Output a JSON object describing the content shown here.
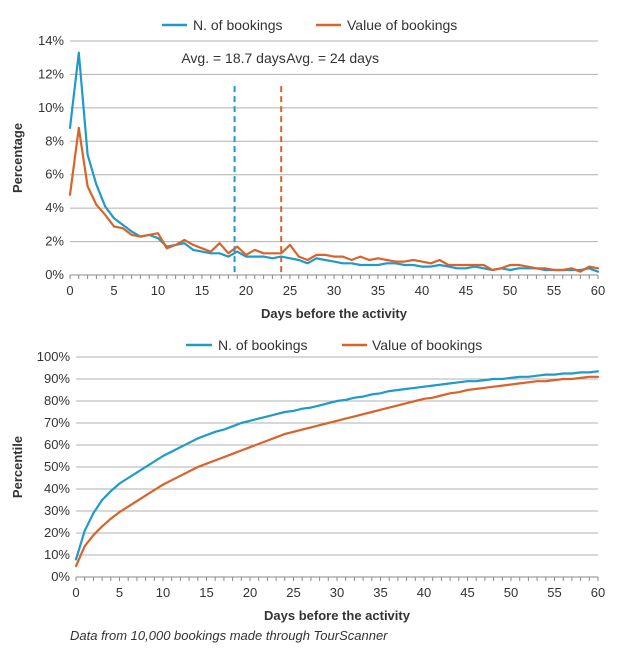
{
  "colors": {
    "blue": "#1f9ac9",
    "orange": "#d9632b"
  },
  "footnote": "Data from 10,000 bookings made through TourScanner",
  "chart_data": [
    {
      "type": "line",
      "xlabel": "Days before the activity",
      "ylabel": "Percentage",
      "xlim": [
        0,
        60
      ],
      "ylim": [
        0,
        14
      ],
      "x_ticks": [
        0,
        5,
        10,
        15,
        20,
        25,
        30,
        35,
        40,
        45,
        50,
        55,
        60
      ],
      "y_ticks": [
        0,
        2,
        4,
        6,
        8,
        10,
        12,
        14
      ],
      "y_tick_labels": [
        "0%",
        "2%",
        "4%",
        "6%",
        "8%",
        "10%",
        "12%",
        "14%"
      ],
      "legend": [
        "N. of bookings",
        "Value of bookings"
      ],
      "annotations": [
        {
          "text": "Avg. = 18.7 days",
          "x": 18.7,
          "color": "blue"
        },
        {
          "text": "Avg. = 24 days",
          "x": 24,
          "color": "orange"
        }
      ],
      "x": [
        0,
        1,
        2,
        3,
        4,
        5,
        6,
        7,
        8,
        9,
        10,
        11,
        12,
        13,
        14,
        15,
        16,
        17,
        18,
        19,
        20,
        21,
        22,
        23,
        24,
        25,
        26,
        27,
        28,
        29,
        30,
        31,
        32,
        33,
        34,
        35,
        36,
        37,
        38,
        39,
        40,
        41,
        42,
        43,
        44,
        45,
        46,
        47,
        48,
        49,
        50,
        51,
        52,
        53,
        54,
        55,
        56,
        57,
        58,
        59,
        60
      ],
      "series": [
        {
          "name": "N. of bookings",
          "color": "blue",
          "values": [
            8.8,
            13.3,
            7.2,
            5.4,
            4.1,
            3.4,
            3.0,
            2.6,
            2.3,
            2.4,
            2.2,
            1.7,
            1.8,
            1.9,
            1.5,
            1.4,
            1.3,
            1.3,
            1.1,
            1.4,
            1.1,
            1.1,
            1.1,
            1.0,
            1.1,
            1.0,
            0.9,
            0.7,
            1.0,
            0.9,
            0.8,
            0.7,
            0.7,
            0.6,
            0.6,
            0.6,
            0.7,
            0.7,
            0.6,
            0.6,
            0.5,
            0.5,
            0.6,
            0.5,
            0.4,
            0.4,
            0.5,
            0.4,
            0.3,
            0.4,
            0.3,
            0.4,
            0.4,
            0.4,
            0.3,
            0.3,
            0.3,
            0.3,
            0.3,
            0.4,
            0.2
          ]
        },
        {
          "name": "Value of bookings",
          "color": "orange",
          "values": [
            4.8,
            8.8,
            5.3,
            4.2,
            3.6,
            2.9,
            2.8,
            2.4,
            2.3,
            2.4,
            2.5,
            1.6,
            1.8,
            2.1,
            1.8,
            1.6,
            1.4,
            1.9,
            1.3,
            1.7,
            1.2,
            1.5,
            1.3,
            1.3,
            1.3,
            1.8,
            1.1,
            0.9,
            1.2,
            1.2,
            1.1,
            1.1,
            0.9,
            1.1,
            0.9,
            1.0,
            0.9,
            0.8,
            0.8,
            0.9,
            0.8,
            0.7,
            0.9,
            0.6,
            0.6,
            0.6,
            0.6,
            0.6,
            0.3,
            0.4,
            0.6,
            0.6,
            0.5,
            0.4,
            0.4,
            0.3,
            0.3,
            0.4,
            0.2,
            0.5,
            0.4
          ]
        }
      ]
    },
    {
      "type": "line",
      "xlabel": "Days before the activity",
      "ylabel": "Percentile",
      "xlim": [
        0,
        60
      ],
      "ylim": [
        0,
        100
      ],
      "x_ticks": [
        0,
        5,
        10,
        15,
        20,
        25,
        30,
        35,
        40,
        45,
        50,
        55,
        60
      ],
      "y_ticks": [
        0,
        10,
        20,
        30,
        40,
        50,
        60,
        70,
        80,
        90,
        100
      ],
      "y_tick_labels": [
        "0%",
        "10%",
        "20%",
        "30%",
        "40%",
        "50%",
        "60%",
        "70%",
        "80%",
        "90%",
        "100%"
      ],
      "legend": [
        "N. of bookings",
        "Value of bookings"
      ],
      "x": [
        0,
        1,
        2,
        3,
        4,
        5,
        6,
        7,
        8,
        9,
        10,
        11,
        12,
        13,
        14,
        15,
        16,
        17,
        18,
        19,
        20,
        21,
        22,
        23,
        24,
        25,
        26,
        27,
        28,
        29,
        30,
        31,
        32,
        33,
        34,
        35,
        36,
        37,
        38,
        39,
        40,
        41,
        42,
        43,
        44,
        45,
        46,
        47,
        48,
        49,
        50,
        51,
        52,
        53,
        54,
        55,
        56,
        57,
        58,
        59,
        60
      ],
      "series": [
        {
          "name": "N. of bookings",
          "color": "blue",
          "values": [
            8,
            21,
            29,
            35,
            39,
            42.5,
            45,
            47.5,
            50,
            52.5,
            55,
            57,
            59,
            61,
            63,
            64.5,
            66,
            67,
            68.5,
            70,
            71,
            72,
            73,
            74,
            75,
            75.5,
            76.5,
            77,
            78,
            79,
            80,
            80.5,
            81.5,
            82,
            83,
            83.5,
            84.5,
            85,
            85.5,
            86,
            86.5,
            87,
            87.5,
            88,
            88.5,
            89,
            89,
            89.5,
            90,
            90,
            90.5,
            91,
            91,
            91.5,
            92,
            92,
            92.5,
            92.5,
            93,
            93,
            93.5
          ]
        },
        {
          "name": "Value of bookings",
          "color": "orange",
          "values": [
            5,
            14,
            19,
            23,
            26.5,
            29.5,
            32,
            34.5,
            37,
            39.5,
            42,
            44,
            46,
            48,
            50,
            51.5,
            53,
            54.5,
            56,
            57.5,
            59,
            60.5,
            62,
            63.5,
            65,
            66,
            67,
            68,
            69,
            70,
            71,
            72,
            73,
            74,
            75,
            76,
            77,
            78,
            79,
            80,
            81,
            81.5,
            82.5,
            83.5,
            84,
            85,
            85.5,
            86,
            86.5,
            87,
            87.5,
            88,
            88.5,
            89,
            89,
            89.5,
            90,
            90,
            90.5,
            91,
            91
          ]
        }
      ]
    }
  ]
}
